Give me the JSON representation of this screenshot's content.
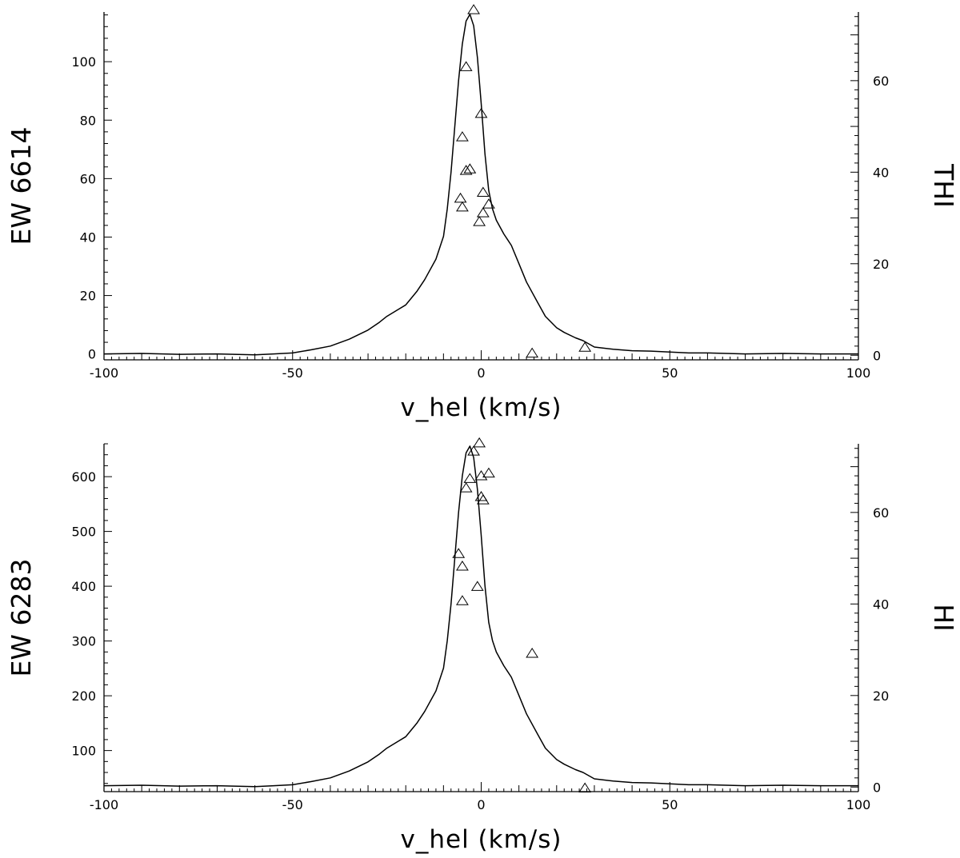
{
  "chart_data": [
    {
      "type": "line",
      "title": "",
      "xlabel": "v_hel (km/s)",
      "ylabel": "EW 6614",
      "ylabel_right": "THI",
      "xlim": [
        -100,
        100
      ],
      "ylim": [
        -2,
        117
      ],
      "ylim_right": [
        -1,
        75
      ],
      "xticks": [
        -100,
        -50,
        0,
        50,
        100
      ],
      "xtick_labels": [
        "-100",
        "-50",
        "0",
        "50",
        "100"
      ],
      "yticks": [
        0,
        20,
        40,
        60,
        80,
        100
      ],
      "ytick_labels": [
        "0",
        "20",
        "40",
        "60",
        "80",
        "100"
      ],
      "yticks_right": [
        0,
        20,
        40,
        60
      ],
      "ytick_labels_right": [
        "0",
        "20",
        "40",
        "60"
      ],
      "series": [
        {
          "kind": "line",
          "axis": "right",
          "x": [
            -100,
            -90,
            -80,
            -70,
            -60,
            -55,
            -50,
            -45,
            -40,
            -35,
            -30,
            -27,
            -25,
            -22,
            -20,
            -17,
            -15,
            -12,
            -10,
            -9,
            -8,
            -7,
            -6,
            -5,
            -4,
            -3,
            -2,
            -1,
            0,
            1,
            2,
            3,
            4,
            5,
            6,
            8,
            10,
            12,
            15,
            17,
            20,
            22,
            25,
            27,
            30,
            35,
            40,
            45,
            50,
            55,
            60,
            70,
            80,
            90,
            100
          ],
          "y": [
            0.3,
            0.4,
            0.2,
            0.3,
            0.1,
            0.3,
            0.5,
            1.2,
            2.0,
            3.5,
            5.5,
            7.2,
            8.5,
            10.0,
            11.0,
            14.0,
            16.5,
            21.0,
            26.0,
            32.0,
            40.0,
            50.0,
            60.0,
            68.0,
            73.0,
            74.5,
            72.0,
            65.0,
            55.0,
            44.0,
            36.0,
            32.0,
            29.5,
            28.0,
            26.5,
            24.0,
            20.0,
            16.0,
            11.5,
            8.5,
            6.0,
            5.0,
            3.8,
            3.2,
            1.8,
            1.3,
            1.0,
            0.9,
            0.7,
            0.5,
            0.5,
            0.3,
            0.4,
            0.3,
            0.3
          ]
        },
        {
          "kind": "scatter",
          "axis": "left",
          "marker": "triangle",
          "x": [
            -2,
            -4,
            0,
            -5,
            -3,
            -4,
            -5.5,
            0.5,
            -5,
            2,
            0.5,
            -0.5,
            13.5,
            27.5
          ],
          "y": [
            117.5,
            98,
            82,
            74,
            63,
            62.5,
            53,
            55,
            50,
            51,
            48,
            45,
            0,
            2
          ]
        }
      ]
    },
    {
      "type": "line",
      "title": "",
      "xlabel": "v_hel (km/s)",
      "ylabel": "EW 6283",
      "ylabel_right": "HI",
      "xlim": [
        -100,
        100
      ],
      "ylim": [
        25,
        660
      ],
      "ylim_right": [
        -1,
        75
      ],
      "xticks": [
        -100,
        -50,
        0,
        50,
        100
      ],
      "xtick_labels": [
        "-100",
        "-50",
        "0",
        "50",
        "100"
      ],
      "yticks": [
        100,
        200,
        300,
        400,
        500,
        600
      ],
      "ytick_labels": [
        "100",
        "200",
        "300",
        "400",
        "500",
        "600"
      ],
      "yticks_right": [
        0,
        20,
        40,
        60
      ],
      "ytick_labels_right": [
        "0",
        "20",
        "40",
        "60"
      ],
      "series": [
        {
          "kind": "line",
          "axis": "right",
          "x": [
            -100,
            -90,
            -80,
            -70,
            -60,
            -55,
            -50,
            -45,
            -40,
            -35,
            -30,
            -27,
            -25,
            -22,
            -20,
            -17,
            -15,
            -12,
            -10,
            -9,
            -8,
            -7,
            -6,
            -5,
            -4,
            -3,
            -2,
            -1,
            0,
            1,
            2,
            3,
            4,
            5,
            6,
            8,
            10,
            12,
            15,
            17,
            20,
            22,
            25,
            27,
            30,
            35,
            40,
            45,
            50,
            55,
            60,
            70,
            80,
            90,
            100
          ],
          "y": [
            0.3,
            0.4,
            0.2,
            0.3,
            0.1,
            0.3,
            0.5,
            1.2,
            2.0,
            3.5,
            5.5,
            7.2,
            8.5,
            10.0,
            11.0,
            14.0,
            16.5,
            21.0,
            26.0,
            32.0,
            40.0,
            50.0,
            60.0,
            68.0,
            73.0,
            74.5,
            72.0,
            65.0,
            55.0,
            44.0,
            36.0,
            32.0,
            29.5,
            28.0,
            26.5,
            24.0,
            20.0,
            16.0,
            11.5,
            8.5,
            6.0,
            5.0,
            3.8,
            3.2,
            1.8,
            1.3,
            1.0,
            0.9,
            0.7,
            0.5,
            0.5,
            0.3,
            0.4,
            0.3,
            0.3
          ]
        },
        {
          "kind": "scatter",
          "axis": "left",
          "marker": "triangle",
          "x": [
            -0.5,
            -2,
            2,
            -3,
            0,
            -4,
            0,
            0.5,
            -6,
            -5,
            -1,
            -5,
            13.5,
            27.5
          ],
          "y": [
            660,
            645,
            605,
            595,
            600,
            578,
            562,
            556,
            458,
            435,
            398,
            372,
            276,
            30
          ]
        }
      ]
    }
  ]
}
